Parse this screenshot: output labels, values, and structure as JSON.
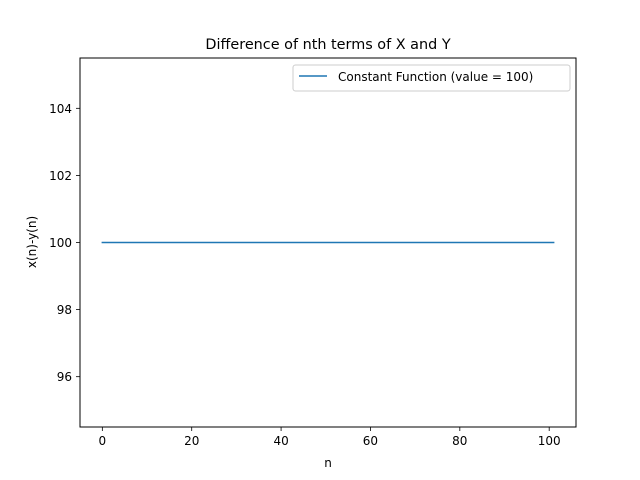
{
  "chart_data": {
    "type": "line",
    "title": "Difference of nth terms of X and Y",
    "xlabel": "n",
    "ylabel": "x(n)-y(n)",
    "xlim": [
      -5,
      106
    ],
    "ylim": [
      94.5,
      105.5
    ],
    "xticks": [
      0,
      20,
      40,
      60,
      80,
      100
    ],
    "yticks": [
      96,
      98,
      100,
      102,
      104
    ],
    "grid": false,
    "legend_position": "top-right",
    "series": [
      {
        "name": "Constant Function (value = 100)",
        "color": "#1f77b4",
        "x": [
          0,
          101
        ],
        "y": [
          100,
          100
        ]
      }
    ]
  }
}
